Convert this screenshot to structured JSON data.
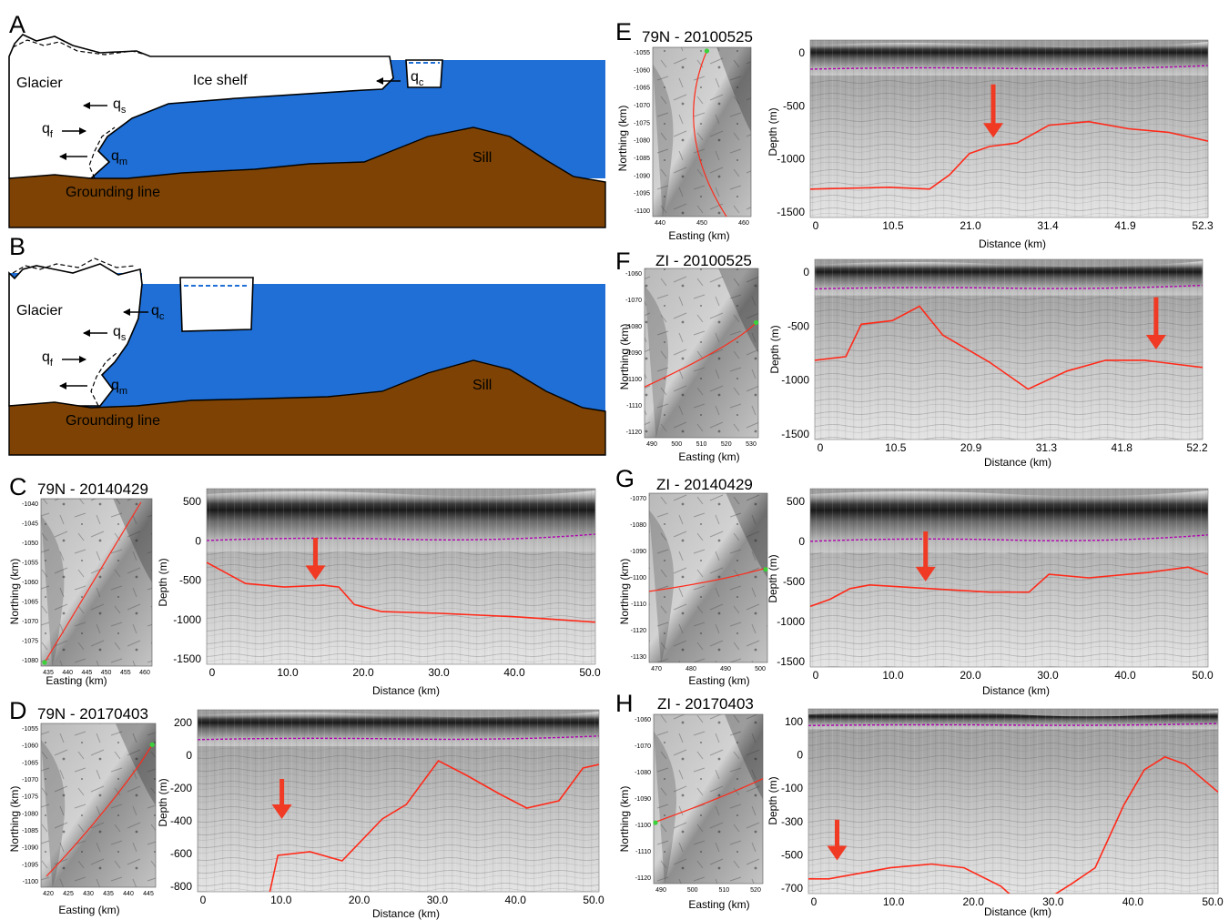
{
  "colors": {
    "ocean": "#1f6fd6",
    "bed": "#7e4304",
    "trace": "#ff2a1a",
    "arrow": "#f03a24",
    "surface_pick": "#b000b0",
    "pick_green": "#3ad13a"
  },
  "diagrams": [
    {
      "letter": "A",
      "labels": {
        "glacier": "Glacier",
        "ice_shelf": "Ice shelf",
        "grounding_line": "Grounding line",
        "sill": "Sill"
      },
      "fluxes": {
        "qs": "s",
        "qf": "f",
        "qm": "m",
        "qc": "c"
      },
      "q": "q"
    },
    {
      "letter": "B",
      "labels": {
        "glacier": "Glacier",
        "grounding_line": "Grounding line",
        "sill": "Sill"
      },
      "fluxes": {
        "qs": "s",
        "qf": "f",
        "qm": "m",
        "qc": "c"
      },
      "q": "q"
    }
  ],
  "map_axes": {
    "ylabel": "Northing (km)",
    "xlabel": "Easting (km)"
  },
  "profile_axes": {
    "ylabel": "Depth (m)",
    "xlabel": "Distance (km)"
  },
  "panels": [
    {
      "letter": "C",
      "title": "79N - 20140429",
      "map_yticks": [
        "-1040",
        "-1045",
        "-1050",
        "-1055",
        "-1060",
        "-1065",
        "-1070",
        "-1075",
        "-1080"
      ],
      "map_xticks": [
        "435",
        "440",
        "445",
        "450",
        "455",
        "460"
      ],
      "yticks": [
        "500",
        "0",
        "-500",
        "-1000",
        "-1500"
      ],
      "xticks": [
        "0",
        "10.0",
        "20.0",
        "30.0",
        "40.0",
        "50.0"
      ]
    },
    {
      "letter": "D",
      "title": "79N - 20170403",
      "map_yticks": [
        "-1055",
        "-1060",
        "-1065",
        "-1070",
        "-1075",
        "-1080",
        "-1085",
        "-1090",
        "-1095",
        "-1100"
      ],
      "map_xticks": [
        "420",
        "425",
        "430",
        "435",
        "440",
        "445"
      ],
      "yticks": [
        "200",
        "0",
        "-200",
        "-400",
        "-600",
        "-800"
      ],
      "xticks": [
        "0",
        "10.0",
        "20.0",
        "30.0",
        "40.0",
        "50.0"
      ]
    },
    {
      "letter": "E",
      "title": "79N - 20100525",
      "map_yticks": [
        "-1055",
        "-1060",
        "-1065",
        "-1070",
        "-1075",
        "-1080",
        "-1085",
        "-1090",
        "-1095",
        "-1100"
      ],
      "map_xticks": [
        "440",
        "450",
        "460"
      ],
      "yticks": [
        "0",
        "-500",
        "-1000",
        "-1500"
      ],
      "xticks": [
        "0",
        "10.5",
        "21.0",
        "31.4",
        "41.9",
        "52.3"
      ]
    },
    {
      "letter": "F",
      "title": "ZI - 20100525",
      "map_yticks": [
        "-1060",
        "-1070",
        "-1080",
        "-1090",
        "-1100",
        "-1110",
        "-1120"
      ],
      "map_xticks": [
        "490",
        "500",
        "510",
        "520",
        "530"
      ],
      "yticks": [
        "0",
        "-500",
        "-1000",
        "-1500"
      ],
      "xticks": [
        "0",
        "10.5",
        "20.9",
        "31.3",
        "41.8",
        "52.2"
      ]
    },
    {
      "letter": "G",
      "title": "ZI - 20140429",
      "map_yticks": [
        "-1070",
        "-1080",
        "-1090",
        "-1100",
        "-1110",
        "-1120",
        "-1130"
      ],
      "map_xticks": [
        "470",
        "480",
        "490",
        "500"
      ],
      "yticks": [
        "500",
        "0",
        "-500",
        "-1000",
        "-1500"
      ],
      "xticks": [
        "0",
        "10.0",
        "20.0",
        "30.0",
        "40.0",
        "50.0"
      ]
    },
    {
      "letter": "H",
      "title": "ZI - 20170403",
      "map_yticks": [
        "-1060",
        "-1070",
        "-1080",
        "-1090",
        "-1100",
        "-1110",
        "-1120"
      ],
      "map_xticks": [
        "490",
        "500",
        "510",
        "520"
      ],
      "yticks": [
        "100",
        "0",
        "-100",
        "-300",
        "-500",
        "-700"
      ],
      "xticks": [
        "0",
        "10.0",
        "20.0",
        "30.0",
        "40.0",
        "50.0"
      ]
    }
  ]
}
